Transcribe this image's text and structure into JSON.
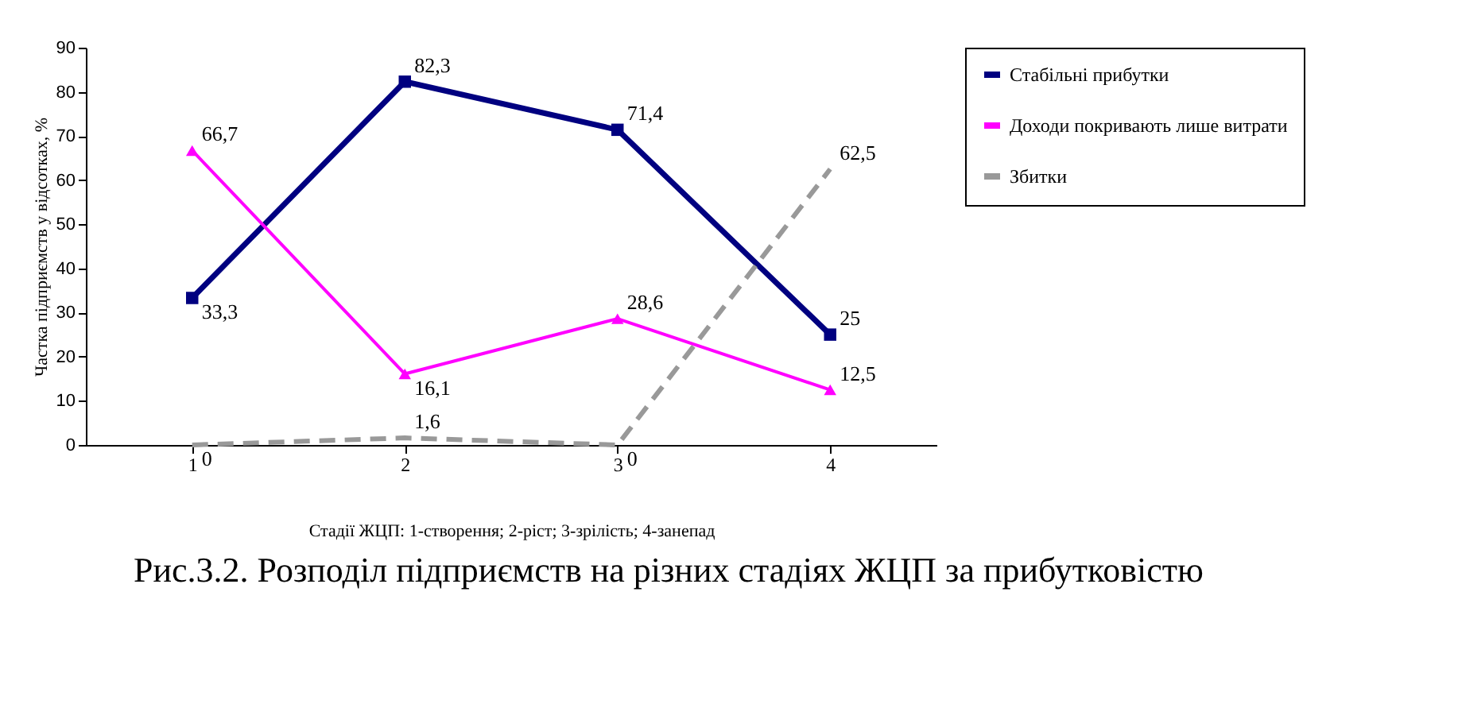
{
  "chart_data": {
    "type": "line",
    "ylabel": "Частка підприємств у відсотках, %",
    "xlabel": "Стадії ЖЦП: 1-створення; 2-ріст; 3-зрілість; 4-занепад",
    "categories": [
      "1",
      "2",
      "3",
      "4"
    ],
    "series": [
      {
        "name": "Стабільні прибутки",
        "color": "#000080",
        "values": [
          33.3,
          82.3,
          71.4,
          25
        ],
        "value_labels": [
          "33,3",
          "82,3",
          "71,4",
          "25"
        ],
        "marker": "square",
        "line_style": "solid"
      },
      {
        "name": "Доходи покривають лише витрати",
        "color": "#ff00ff",
        "values": [
          66.7,
          16.1,
          28.6,
          12.5
        ],
        "value_labels": [
          "66,7",
          "16,1",
          "28,6",
          "12,5"
        ],
        "marker": "triangle",
        "line_style": "solid"
      },
      {
        "name": "Збитки",
        "color": "#999999",
        "values": [
          0,
          1.6,
          0,
          62.5
        ],
        "value_labels": [
          "0",
          "1,6",
          "0",
          "62,5"
        ],
        "marker": "none",
        "line_style": "dashed"
      }
    ],
    "ylim": [
      0,
      90
    ],
    "yticks": [
      0,
      10,
      20,
      30,
      40,
      50,
      60,
      70,
      80,
      90
    ],
    "grid": false,
    "legend": "right",
    "annotations": [
      "Рис.3.2. Розподіл підприємств на різних стадіях ЖЦП за прибутковістю"
    ]
  }
}
